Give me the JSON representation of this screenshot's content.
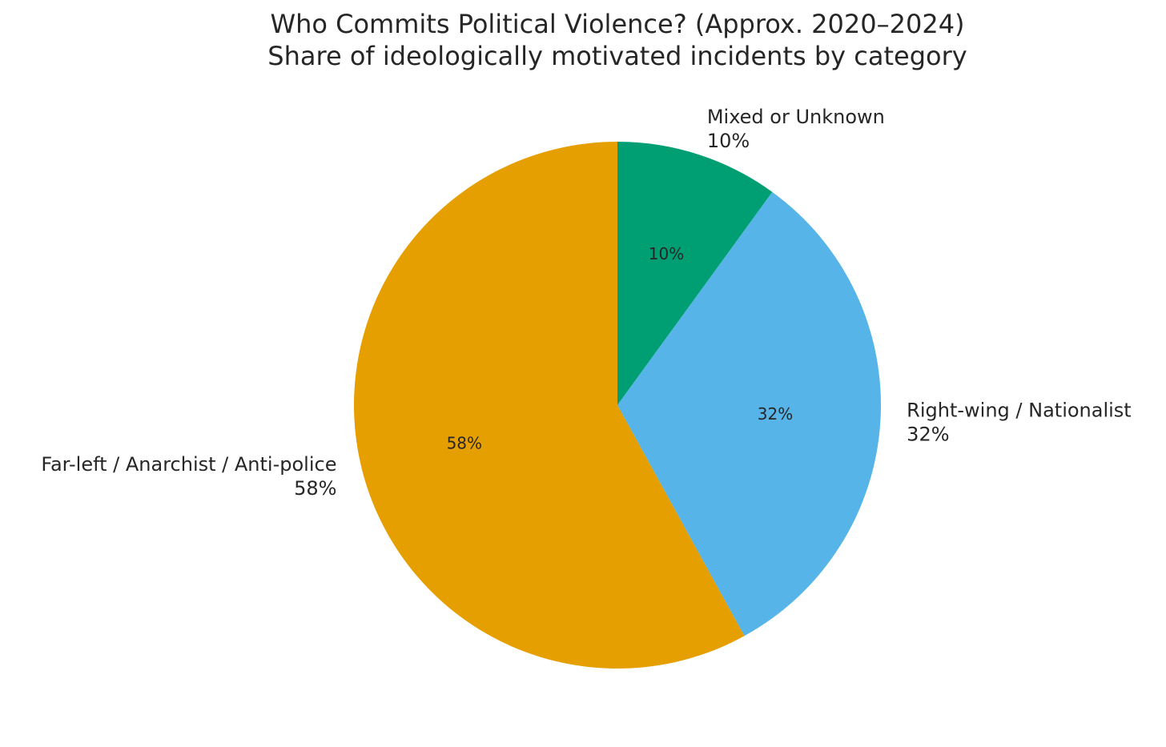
{
  "chart_data": {
    "type": "pie",
    "title": "Who Commits Political Violence? (Approx. 2020–2024)",
    "subtitle": "Share of ideologically motivated incidents by category",
    "categories": [
      "Mixed or Unknown",
      "Right-wing / Nationalist",
      "Far-left / Anarchist / Anti-police"
    ],
    "values": [
      10,
      32,
      58
    ],
    "value_labels": [
      "10%",
      "32%",
      "58%"
    ],
    "colors": [
      "#009E73",
      "#56B4E9",
      "#E69F00"
    ]
  }
}
